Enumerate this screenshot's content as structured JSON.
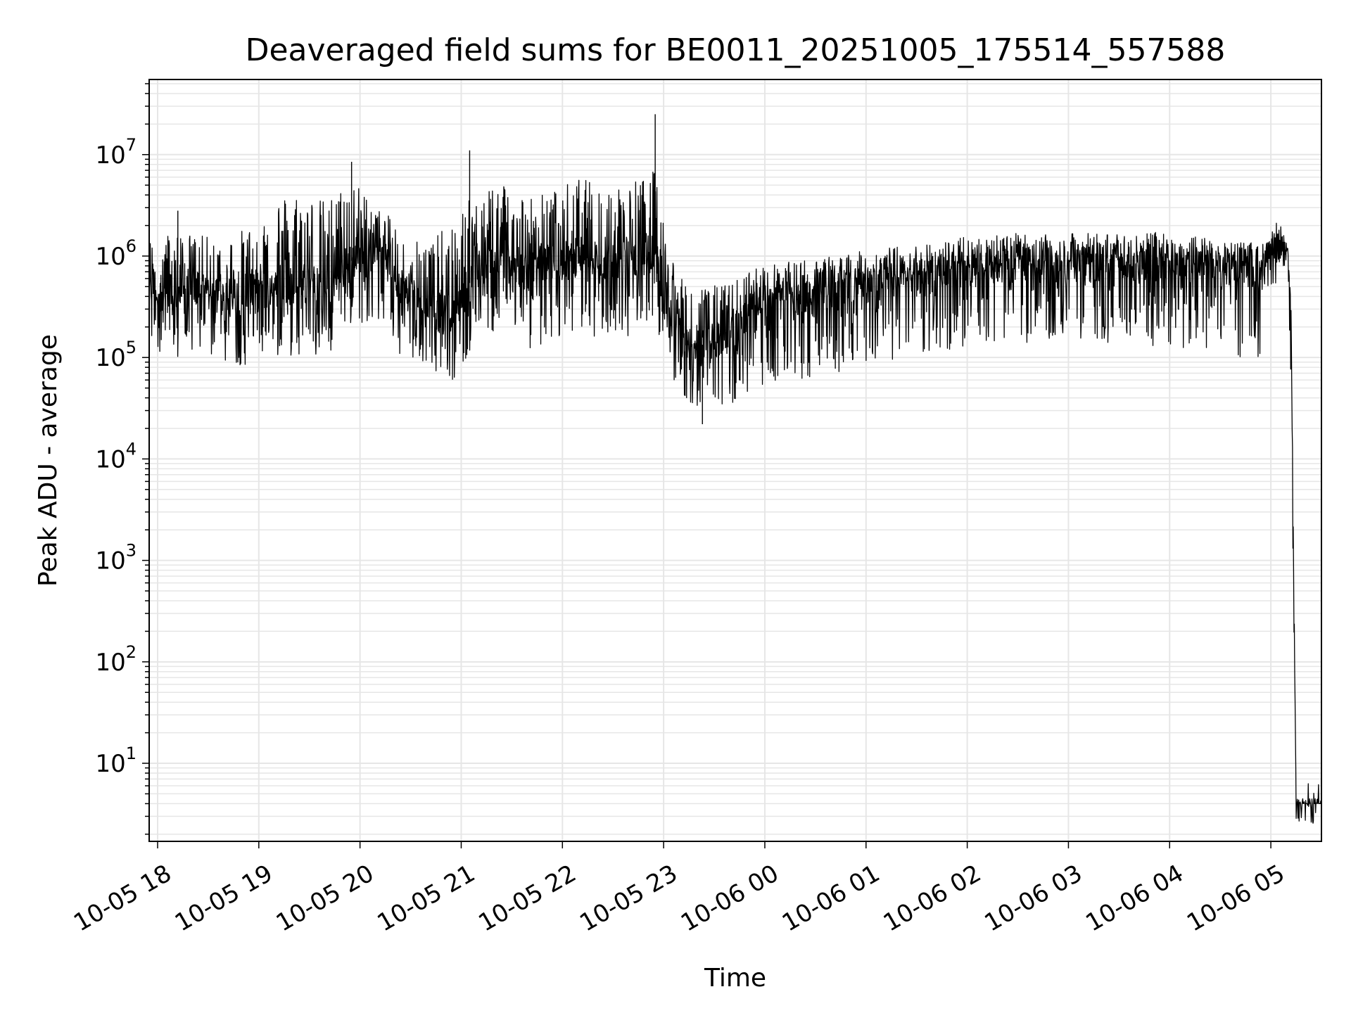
{
  "chart_data": {
    "type": "line",
    "title": "Deaveraged field sums for BE0011_20251005_175514_557588",
    "xlabel": "Time",
    "ylabel": "Peak ADU - average",
    "yscale": "log",
    "ylim": [
      1.7,
      55000000
    ],
    "xlim": [
      "2025-10-05 17:55",
      "2025-10-06 05:30"
    ],
    "xticks": [
      "10-05 18",
      "10-05 19",
      "10-05 20",
      "10-05 21",
      "10-05 22",
      "10-05 23",
      "10-06 00",
      "10-06 01",
      "10-06 02",
      "10-06 03",
      "10-06 04",
      "10-06 05"
    ],
    "yticks": [
      {
        "base": "10",
        "exp": "1"
      },
      {
        "base": "10",
        "exp": "2"
      },
      {
        "base": "10",
        "exp": "3"
      },
      {
        "base": "10",
        "exp": "4"
      },
      {
        "base": "10",
        "exp": "5"
      },
      {
        "base": "10",
        "exp": "6"
      },
      {
        "base": "10",
        "exp": "7"
      }
    ],
    "grid": true,
    "line_color": "#000000",
    "grid_color": "#e6e6e6",
    "series": [
      {
        "x": [
          "2025-10-05 17:55",
          "2025-10-05 18:10",
          "2025-10-05 18:25",
          "2025-10-05 18:40",
          "2025-10-05 18:55",
          "2025-10-05 19:10",
          "2025-10-05 19:25",
          "2025-10-05 19:40",
          "2025-10-05 19:55",
          "2025-10-05 20:10",
          "2025-10-05 20:25",
          "2025-10-05 20:40",
          "2025-10-05 20:55",
          "2025-10-05 21:10",
          "2025-10-05 21:25",
          "2025-10-05 21:40",
          "2025-10-05 21:55",
          "2025-10-05 22:10",
          "2025-10-05 22:25",
          "2025-10-05 22:40",
          "2025-10-05 22:55",
          "2025-10-05 23:10",
          "2025-10-05 23:25",
          "2025-10-05 23:40",
          "2025-10-05 23:55",
          "2025-10-06 00:10",
          "2025-10-06 00:25",
          "2025-10-06 00:40",
          "2025-10-06 00:55",
          "2025-10-06 01:10",
          "2025-10-06 01:25",
          "2025-10-06 01:40",
          "2025-10-06 01:55",
          "2025-10-06 02:10",
          "2025-10-06 02:25",
          "2025-10-06 02:40",
          "2025-10-06 02:55",
          "2025-10-06 03:10",
          "2025-10-06 03:25",
          "2025-10-06 03:40",
          "2025-10-06 03:55",
          "2025-10-06 04:10",
          "2025-10-06 04:25",
          "2025-10-06 04:40",
          "2025-10-06 04:55",
          "2025-10-06 05:05",
          "2025-10-06 05:10",
          "2025-10-06 05:12",
          "2025-10-06 05:15",
          "2025-10-06 05:30"
        ],
        "values": [
          500000,
          400000,
          450000,
          380000,
          420000,
          500000,
          550000,
          480000,
          900000,
          1200000,
          500000,
          300000,
          250000,
          800000,
          900000,
          700000,
          850000,
          1000000,
          900000,
          950000,
          1100000,
          160000,
          130000,
          150000,
          350000,
          360000,
          420000,
          480000,
          520000,
          560000,
          620000,
          680000,
          720000,
          800000,
          850000,
          870000,
          880000,
          890000,
          880000,
          870000,
          860000,
          820000,
          800000,
          780000,
          760000,
          1500000,
          1200000,
          250000,
          4,
          4
        ],
        "upper": [
          1500000,
          1800000,
          1600000,
          1500000,
          2000000,
          4000000,
          4500000,
          3500000,
          6000000,
          3000000,
          2000000,
          1500000,
          2000000,
          5000000,
          6000000,
          4000000,
          4500000,
          6000000,
          5000000,
          5500000,
          7000000,
          600000,
          500000,
          550000,
          800000,
          850000,
          950000,
          1000000,
          1100000,
          1200000,
          1300000,
          1400000,
          1500000,
          1800000,
          1700000,
          1600000,
          1650000,
          1700000,
          1700000,
          1750000,
          1700000,
          1600000,
          1500000,
          1400000,
          1350000,
          1600000,
          1300000,
          300000,
          4.5,
          4.5
        ],
        "lower": [
          120000,
          100000,
          110000,
          90000,
          80000,
          100000,
          100000,
          90000,
          200000,
          250000,
          100000,
          80000,
          60000,
          150000,
          200000,
          120000,
          150000,
          180000,
          150000,
          160000,
          200000,
          40000,
          30000,
          35000,
          50000,
          55000,
          60000,
          70000,
          80000,
          90000,
          100000,
          110000,
          120000,
          130000,
          140000,
          140000,
          140000,
          140000,
          130000,
          130000,
          130000,
          120000,
          110000,
          100000,
          100000,
          800000,
          700000,
          30000,
          4,
          4
        ]
      }
    ],
    "spikes": [
      {
        "x": "2025-10-05 22:55",
        "value": 25000000
      },
      {
        "x": "2025-10-05 21:05",
        "value": 11000000
      },
      {
        "x": "2025-10-05 19:55",
        "value": 8500000
      },
      {
        "x": "2025-10-05 23:23",
        "value": 22000
      },
      {
        "x": "2025-10-05 18:12",
        "value": 2800000
      }
    ]
  }
}
